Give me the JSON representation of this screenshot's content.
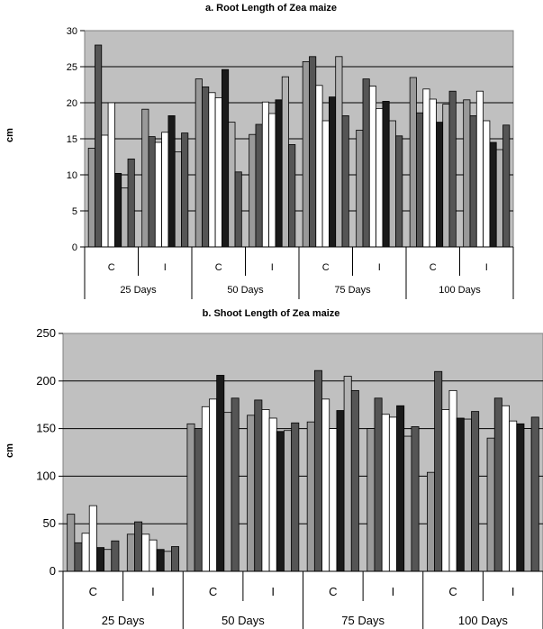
{
  "chart_data": [
    {
      "type": "bar",
      "title": "a. Root Length of Zea maize",
      "ylabel": "cm",
      "xlabel": "",
      "ylim": [
        0,
        30
      ],
      "yticks": [
        0,
        5,
        10,
        15,
        20,
        25,
        30
      ],
      "grid": true,
      "legend": "none",
      "treatment_labels": [
        "C",
        "I",
        "C",
        "I",
        "C",
        "I",
        "C",
        "I"
      ],
      "day_labels": [
        "25 Days",
        "50 Days",
        "75 Days",
        "100 Days"
      ],
      "groups": [
        [
          13.7,
          28.0,
          15.5,
          20.0,
          10.2,
          8.2,
          12.2
        ],
        [
          19.1,
          15.3,
          14.5,
          15.9,
          18.2,
          13.2,
          15.8
        ],
        [
          23.3,
          22.2,
          21.4,
          20.7,
          24.6,
          17.3,
          10.4
        ],
        [
          15.6,
          17.0,
          20.1,
          18.5,
          20.4,
          23.6,
          14.2
        ],
        [
          25.7,
          26.4,
          22.4,
          17.5,
          20.8,
          26.4,
          18.2
        ],
        [
          16.2,
          23.3,
          22.3,
          19.2,
          20.2,
          17.5,
          15.4
        ],
        [
          23.5,
          18.6,
          21.9,
          20.5,
          17.3,
          19.8,
          21.6
        ],
        [
          20.4,
          18.2,
          21.6,
          17.5,
          14.5,
          13.5,
          16.9
        ]
      ],
      "bar_colors": [
        "#999999",
        "#555555",
        "#ffffff",
        "#ffffff",
        "#1a1a1a",
        "#b3b3b3",
        "#555555"
      ],
      "plot_bg": "#c0c0c0"
    },
    {
      "type": "bar",
      "title": "b. Shoot Length of Zea maize",
      "ylabel": "cm",
      "xlabel": "",
      "ylim": [
        0,
        250
      ],
      "yticks": [
        0,
        50,
        100,
        150,
        200,
        250
      ],
      "grid": true,
      "legend": "none",
      "treatment_labels": [
        "C",
        "I",
        "C",
        "I",
        "C",
        "I",
        "C",
        "I"
      ],
      "day_labels": [
        "25 Days",
        "50 Days",
        "75 Days",
        "100 Days"
      ],
      "groups": [
        [
          60,
          30,
          40,
          69,
          25,
          23,
          32
        ],
        [
          39,
          52,
          39,
          33,
          23,
          21,
          26
        ],
        [
          155,
          150,
          173,
          181,
          206,
          167,
          182
        ],
        [
          164,
          180,
          170,
          161,
          147,
          148,
          156
        ],
        [
          157,
          211,
          181,
          150,
          169,
          205,
          190
        ],
        [
          150,
          182,
          165,
          162,
          174,
          142,
          152
        ],
        [
          104,
          210,
          170,
          190,
          161,
          160,
          168
        ],
        [
          140,
          182,
          174,
          158,
          155,
          150,
          162
        ]
      ],
      "bar_colors": [
        "#999999",
        "#555555",
        "#ffffff",
        "#ffffff",
        "#1a1a1a",
        "#b3b3b3",
        "#555555"
      ],
      "plot_bg": "#c0c0c0"
    }
  ]
}
